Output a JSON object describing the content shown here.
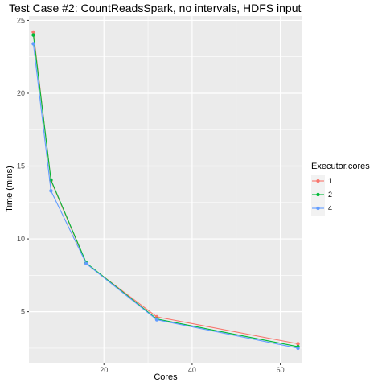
{
  "chart_data": {
    "type": "line",
    "title": "Test Case #2: CountReadsSpark, no intervals, HDFS input",
    "xlabel": "Cores",
    "ylabel": "Time (mins)",
    "xlim": [
      3.0,
      65.0
    ],
    "ylim": [
      1.5,
      25.3
    ],
    "x_ticks": [
      20,
      40,
      60
    ],
    "y_ticks": [
      5,
      10,
      15,
      20,
      25
    ],
    "grid": true,
    "legend": {
      "title": "Executor.cores",
      "position": "right"
    },
    "x": [
      4,
      8,
      16,
      32,
      64
    ],
    "series": [
      {
        "name": "1",
        "color": "#F8766D",
        "values": [
          24.2,
          14.0,
          8.3,
          4.65,
          2.8
        ]
      },
      {
        "name": "2",
        "color": "#00BA38",
        "values": [
          24.0,
          14.05,
          8.35,
          4.5,
          2.6
        ]
      },
      {
        "name": "4",
        "color": "#619CFF",
        "values": [
          23.4,
          13.3,
          8.3,
          4.45,
          2.5
        ]
      }
    ],
    "panel_color": "#EBEBEB",
    "grid_color": "#FFFFFF"
  }
}
